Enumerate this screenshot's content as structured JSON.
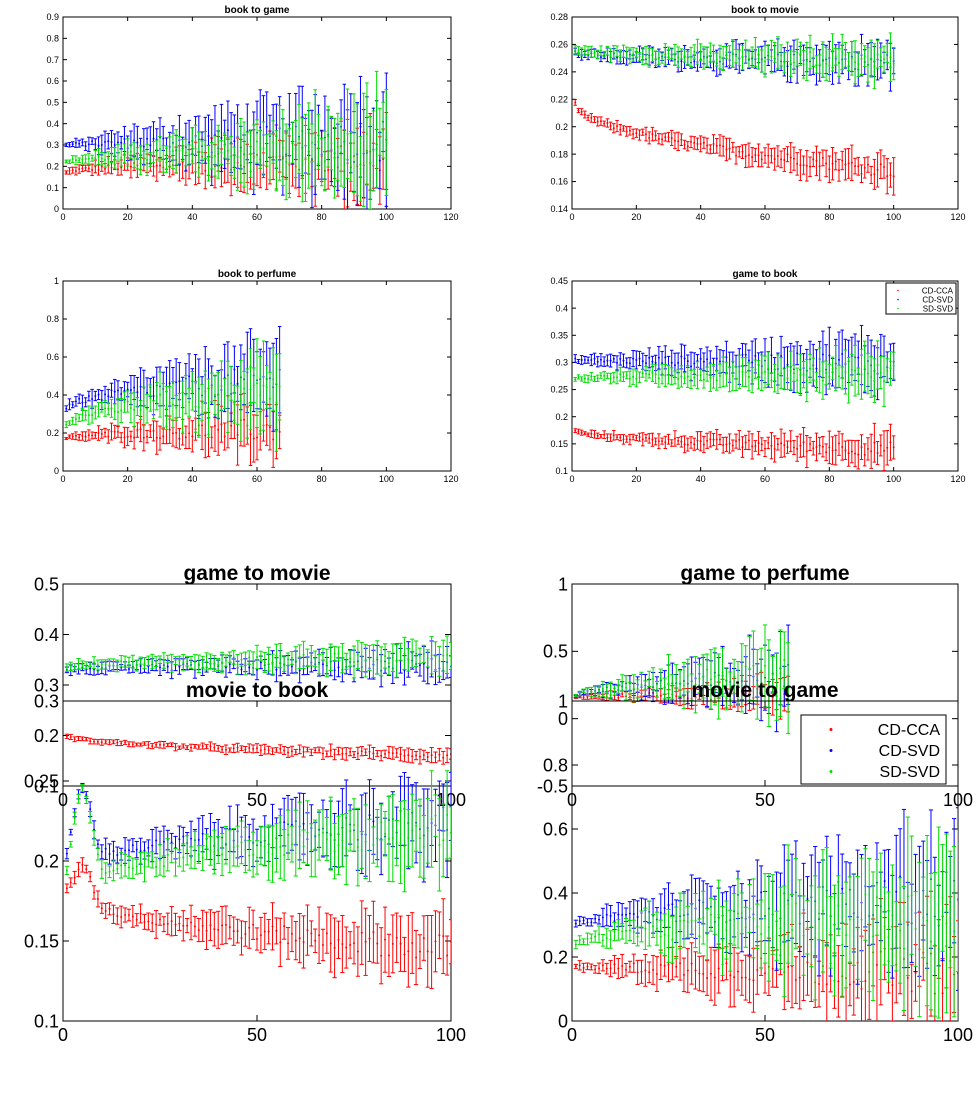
{
  "figure": {
    "series_colors": {
      "CD-CCA": "#ff0000",
      "CD-SVD": "#0000ff",
      "SD-SVD": "#00dd00"
    }
  },
  "chart_data": [
    {
      "type": "errorbar-scatter",
      "title": "book to game",
      "xlim": [
        0,
        120
      ],
      "ylim": [
        0,
        0.9
      ],
      "xticks": [
        "0",
        "20",
        "40",
        "60",
        "80",
        "100",
        "120"
      ],
      "yticks": [
        "0",
        "0.1",
        "0.2",
        "0.3",
        "0.4",
        "0.5",
        "0.6",
        "0.7",
        "0.8",
        "0.9"
      ],
      "n": 100,
      "series": [
        {
          "name": "CD-CCA",
          "start": 0.17,
          "end": 0.24,
          "err_start": 0.01,
          "err_end": 0.18
        },
        {
          "name": "CD-SVD",
          "start": 0.3,
          "end": 0.32,
          "err_start": 0.01,
          "err_end": 0.25
        },
        {
          "name": "SD-SVD",
          "start": 0.22,
          "end": 0.28,
          "err_start": 0.01,
          "err_end": 0.22
        }
      ]
    },
    {
      "type": "errorbar-scatter",
      "title": "book to movie",
      "xlim": [
        0,
        120
      ],
      "ylim": [
        0.14,
        0.28
      ],
      "xticks": [
        "0",
        "20",
        "40",
        "60",
        "80",
        "100",
        "120"
      ],
      "yticks": [
        "0.14",
        "0.16",
        "0.18",
        "0.2",
        "0.22",
        "0.24",
        "0.26",
        "0.28"
      ],
      "n": 100,
      "series": [
        {
          "name": "CD-CCA",
          "start": 0.217,
          "end": 0.168,
          "err_start": 0.002,
          "err_end": 0.012
        },
        {
          "name": "CD-SVD",
          "start": 0.254,
          "end": 0.247,
          "err_start": 0.003,
          "err_end": 0.014
        },
        {
          "name": "SD-SVD",
          "start": 0.256,
          "end": 0.249,
          "err_start": 0.003,
          "err_end": 0.014
        }
      ]
    },
    {
      "type": "errorbar-scatter",
      "title": "book to perfume",
      "xlim": [
        0,
        120
      ],
      "ylim": [
        0,
        1
      ],
      "xticks": [
        "0",
        "20",
        "40",
        "60",
        "80",
        "100",
        "120"
      ],
      "yticks": [
        "0",
        "0.2",
        "0.4",
        "0.6",
        "0.8",
        "1"
      ],
      "n": 67,
      "series": [
        {
          "name": "CD-CCA",
          "start": 0.17,
          "end": 0.22,
          "err_start": 0.01,
          "err_end": 0.15
        },
        {
          "name": "CD-SVD",
          "start": 0.33,
          "end": 0.48,
          "err_start": 0.02,
          "err_end": 0.2
        },
        {
          "name": "SD-SVD",
          "start": 0.24,
          "end": 0.42,
          "err_start": 0.02,
          "err_end": 0.2
        }
      ]
    },
    {
      "type": "errorbar-scatter",
      "title": "game to book",
      "xlim": [
        0,
        120
      ],
      "ylim": [
        0.1,
        0.45
      ],
      "xticks": [
        "0",
        "20",
        "40",
        "60",
        "80",
        "100",
        "120"
      ],
      "yticks": [
        "0.1",
        "0.15",
        "0.2",
        "0.25",
        "0.3",
        "0.35",
        "0.4",
        "0.45"
      ],
      "n": 100,
      "legend": [
        "CD-CCA",
        "CD-SVD",
        "SD-SVD"
      ],
      "legend_position": "top-right",
      "series": [
        {
          "name": "CD-CCA",
          "start": 0.175,
          "end": 0.14,
          "err_start": 0.004,
          "err_end": 0.03
        },
        {
          "name": "CD-SVD",
          "start": 0.305,
          "end": 0.3,
          "err_start": 0.006,
          "err_end": 0.05
        },
        {
          "name": "SD-SVD",
          "start": 0.27,
          "end": 0.28,
          "err_start": 0.006,
          "err_end": 0.04
        }
      ]
    },
    {
      "type": "errorbar-scatter",
      "title": "game to movie",
      "xlim": [
        0,
        100
      ],
      "ylim": [
        0.1,
        0.5
      ],
      "xticks": [
        "0",
        "50",
        "100"
      ],
      "yticks": [
        "0.1",
        "0.2",
        "0.3",
        "0.4",
        "0.5"
      ],
      "n": 100,
      "series": [
        {
          "name": "CD-CCA",
          "start": 0.2,
          "end": 0.16,
          "err_start": 0.004,
          "err_end": 0.012
        },
        {
          "name": "CD-SVD",
          "start": 0.33,
          "end": 0.34,
          "err_start": 0.008,
          "err_end": 0.03
        },
        {
          "name": "SD-SVD",
          "start": 0.335,
          "end": 0.355,
          "err_start": 0.008,
          "err_end": 0.03
        }
      ]
    },
    {
      "type": "errorbar-scatter",
      "title": "game to perfume",
      "xlim": [
        0,
        100
      ],
      "ylim": [
        -0.5,
        1
      ],
      "xticks": [
        "0",
        "50",
        "100"
      ],
      "yticks": [
        "-0.5",
        "0",
        "0.5",
        "1"
      ],
      "n": 56,
      "series": [
        {
          "name": "CD-CCA",
          "start": 0.16,
          "end": 0.18,
          "err_start": 0.01,
          "err_end": 0.12
        },
        {
          "name": "CD-SVD",
          "start": 0.17,
          "end": 0.3,
          "err_start": 0.01,
          "err_end": 0.25
        },
        {
          "name": "SD-SVD",
          "start": 0.17,
          "end": 0.32,
          "err_start": 0.01,
          "err_end": 0.28
        }
      ]
    },
    {
      "type": "errorbar-scatter",
      "title": "movie to book",
      "xlim": [
        0,
        100
      ],
      "ylim": [
        0.1,
        0.3
      ],
      "xticks": [
        "0",
        "50",
        "100"
      ],
      "yticks": [
        "0.1",
        "0.15",
        "0.2",
        "0.25",
        "0.3"
      ],
      "n": 100,
      "series": [
        {
          "name": "CD-CCA",
          "start": 0.18,
          "end": 0.145,
          "err_start": 0.003,
          "err_end": 0.02,
          "peak": 0.198
        },
        {
          "name": "CD-SVD",
          "start": 0.195,
          "end": 0.225,
          "err_start": 0.003,
          "err_end": 0.025,
          "peak": 0.245
        },
        {
          "name": "SD-SVD",
          "start": 0.18,
          "end": 0.22,
          "err_start": 0.003,
          "err_end": 0.025,
          "peak": 0.245
        }
      ]
    },
    {
      "type": "errorbar-scatter",
      "title": "movie to game",
      "xlim": [
        0,
        100
      ],
      "ylim": [
        0,
        1
      ],
      "xticks": [
        "0",
        "50",
        "100"
      ],
      "yticks": [
        "0",
        "0.2",
        "0.4",
        "0.6",
        "0.8",
        "1"
      ],
      "n": 100,
      "legend": [
        "CD-CCA",
        "CD-SVD",
        "SD-SVD"
      ],
      "legend_position": "top-right",
      "series": [
        {
          "name": "CD-CCA",
          "start": 0.17,
          "end": 0.16,
          "err_start": 0.01,
          "err_end": 0.18
        },
        {
          "name": "CD-SVD",
          "start": 0.3,
          "end": 0.38,
          "err_start": 0.01,
          "err_end": 0.22
        },
        {
          "name": "SD-SVD",
          "start": 0.24,
          "end": 0.33,
          "err_start": 0.01,
          "err_end": 0.25
        }
      ]
    }
  ]
}
